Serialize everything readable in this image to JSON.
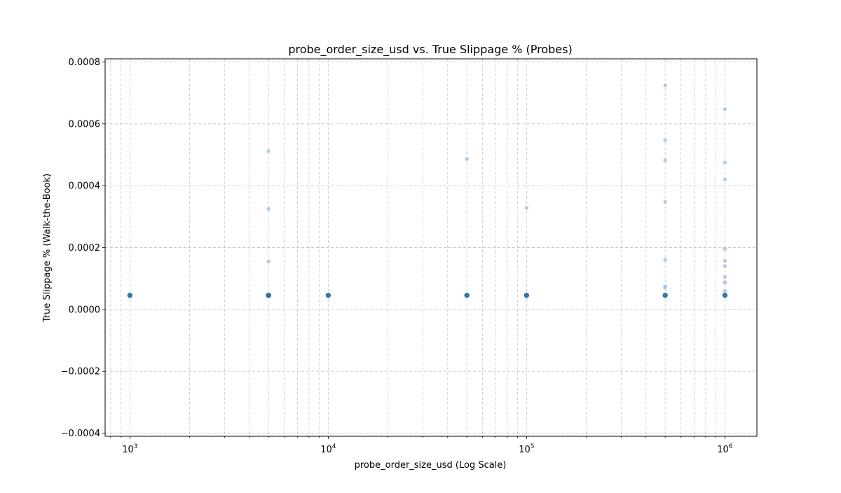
{
  "chart_data": {
    "type": "scatter",
    "title": "probe_order_size_usd vs. True Slippage % (Probes)",
    "xlabel": "probe_order_size_usd (Log Scale)",
    "ylabel": "True Slippage % (Walk-the-Book)",
    "xscale": "log",
    "xlim": [
      750,
      1450000
    ],
    "ylim": [
      -0.00041,
      0.00081
    ],
    "grid": true,
    "x_major_ticks": [
      {
        "value": 1000,
        "base": "10",
        "exp": "3"
      },
      {
        "value": 10000,
        "base": "10",
        "exp": "4"
      },
      {
        "value": 100000,
        "base": "10",
        "exp": "5"
      },
      {
        "value": 1000000,
        "base": "10",
        "exp": "6"
      }
    ],
    "y_ticks": [
      {
        "value": -0.0004,
        "label": "−0.0004"
      },
      {
        "value": -0.0002,
        "label": "−0.0002"
      },
      {
        "value": 0.0,
        "label": "0.0000"
      },
      {
        "value": 0.0002,
        "label": "0.0002"
      },
      {
        "value": 0.0004,
        "label": "0.0004"
      },
      {
        "value": 0.0006,
        "label": "0.0006"
      },
      {
        "value": 0.0008,
        "label": "0.0008"
      }
    ],
    "colors": {
      "point": "#a9c6e0",
      "point_dense": "#1f77b4",
      "grid": "#c8c8c8",
      "axis": "#000000"
    },
    "points": [
      {
        "x": 1000,
        "y": 4.55e-05,
        "dense": true
      },
      {
        "x": 5000,
        "y": 4.55e-05,
        "dense": true
      },
      {
        "x": 5000,
        "y": 4.55e-05,
        "dense": true
      },
      {
        "x": 5000,
        "y": 0.000155,
        "dense": false
      },
      {
        "x": 5000,
        "y": 0.000325,
        "dense": false
      },
      {
        "x": 5000,
        "y": 0.000512,
        "dense": false
      },
      {
        "x": 10000,
        "y": 4.55e-05,
        "dense": true
      },
      {
        "x": 50000,
        "y": 4.55e-05,
        "dense": true
      },
      {
        "x": 50000,
        "y": 0.000486,
        "dense": false
      },
      {
        "x": 100000,
        "y": 4.55e-05,
        "dense": true
      },
      {
        "x": 100000,
        "y": 0.000328,
        "dense": false
      },
      {
        "x": 500000,
        "y": 4.55e-05,
        "dense": true
      },
      {
        "x": 500000,
        "y": 7e-05,
        "dense": false
      },
      {
        "x": 500000,
        "y": 7.4e-05,
        "dense": false
      },
      {
        "x": 500000,
        "y": 0.00016,
        "dense": false
      },
      {
        "x": 500000,
        "y": 0.000348,
        "dense": false
      },
      {
        "x": 500000,
        "y": 0.000482,
        "dense": false
      },
      {
        "x": 500000,
        "y": 0.000547,
        "dense": false
      },
      {
        "x": 500000,
        "y": 0.000724,
        "dense": false
      },
      {
        "x": 1000000,
        "y": 4.55e-05,
        "dense": true
      },
      {
        "x": 1000000,
        "y": 6e-05,
        "dense": false
      },
      {
        "x": 1000000,
        "y": 8.7e-05,
        "dense": false
      },
      {
        "x": 1000000,
        "y": 8.8e-05,
        "dense": false
      },
      {
        "x": 1000000,
        "y": 0.000105,
        "dense": false
      },
      {
        "x": 1000000,
        "y": 0.00014,
        "dense": false
      },
      {
        "x": 1000000,
        "y": 0.000157,
        "dense": false
      },
      {
        "x": 1000000,
        "y": 0.000195,
        "dense": false
      },
      {
        "x": 1000000,
        "y": 0.00042,
        "dense": false
      },
      {
        "x": 1000000,
        "y": 0.000475,
        "dense": false
      },
      {
        "x": 1000000,
        "y": 0.000647,
        "dense": false
      }
    ]
  }
}
